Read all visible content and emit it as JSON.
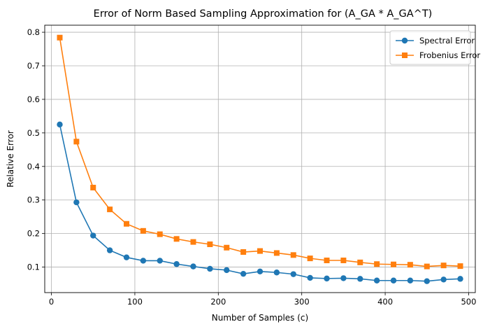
{
  "chart_data": {
    "type": "line",
    "title": "Error of Norm Based Sampling Approximation for (A_GA * A_GA^T)",
    "xlabel": "Number of Samples (c)",
    "ylabel": "Relative Error",
    "xlim": [
      -8,
      508
    ],
    "ylim": [
      0.024,
      0.821
    ],
    "xticks": [
      0,
      100,
      200,
      300,
      400,
      500
    ],
    "yticks": [
      0.1,
      0.2,
      0.3,
      0.4,
      0.5,
      0.6,
      0.7,
      0.8
    ],
    "xtick_labels": [
      "0",
      "100",
      "200",
      "300",
      "400",
      "500"
    ],
    "ytick_labels": [
      "0.1",
      "0.2",
      "0.3",
      "0.4",
      "0.5",
      "0.6",
      "0.7",
      "0.8"
    ],
    "grid": true,
    "legend_position": "top-right",
    "x": [
      10,
      30,
      50,
      70,
      90,
      110,
      130,
      150,
      170,
      190,
      210,
      230,
      250,
      270,
      290,
      310,
      330,
      350,
      370,
      390,
      410,
      430,
      450,
      470,
      490
    ],
    "series": [
      {
        "name": "Spectral Error",
        "color": "#1f77b4",
        "marker": "circle",
        "values": [
          0.525,
          0.293,
          0.194,
          0.15,
          0.129,
          0.119,
          0.119,
          0.109,
          0.102,
          0.095,
          0.091,
          0.08,
          0.087,
          0.084,
          0.079,
          0.068,
          0.066,
          0.067,
          0.065,
          0.06,
          0.06,
          0.06,
          0.058,
          0.063,
          0.065
        ]
      },
      {
        "name": "Frobenius Error",
        "color": "#ff7f0e",
        "marker": "square",
        "values": [
          0.784,
          0.474,
          0.337,
          0.272,
          0.229,
          0.208,
          0.198,
          0.184,
          0.175,
          0.168,
          0.158,
          0.145,
          0.148,
          0.142,
          0.136,
          0.126,
          0.12,
          0.12,
          0.114,
          0.109,
          0.108,
          0.107,
          0.102,
          0.105,
          0.103
        ]
      }
    ]
  }
}
